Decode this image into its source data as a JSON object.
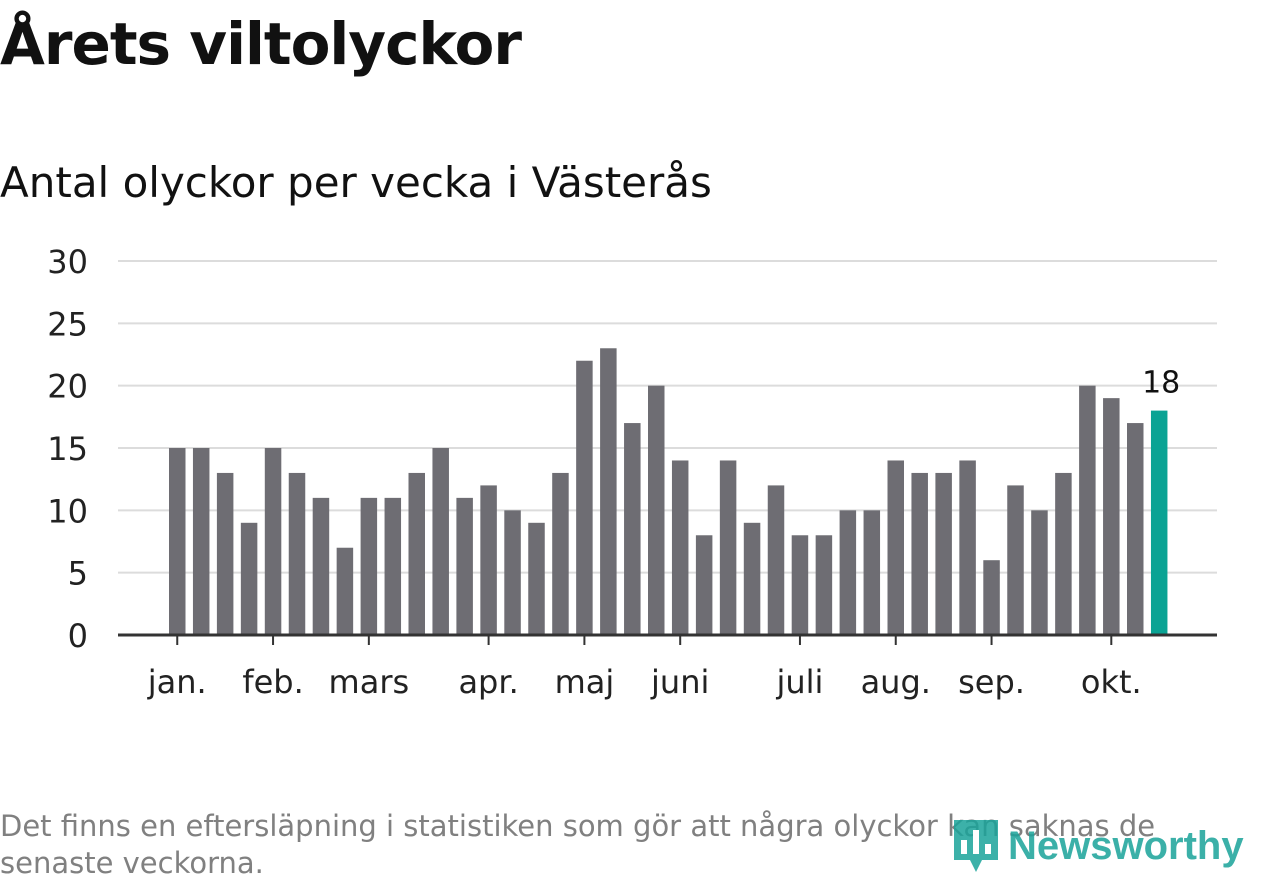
{
  "title": "Årets viltolyckor",
  "subtitle": "Antal olyckor per vecka i Västerås",
  "footnote": "Det finns en eftersläpning i statistiken som gör att några olyckor kan saknas de senaste veckorna.",
  "brand": {
    "name": "Newsworthy",
    "icon": "bar-chart-pin-icon",
    "color": "#1aa39a"
  },
  "colors": {
    "bar": "#6e6d73",
    "highlight": "#0aa394",
    "grid": "#dcdcdc",
    "axis": "#333333"
  },
  "chart_data": {
    "type": "bar",
    "title": "Årets viltolyckor",
    "subtitle": "Antal olyckor per vecka i Västerås",
    "xlabel": "",
    "ylabel": "",
    "ylim": [
      0,
      30
    ],
    "yticks": [
      "0",
      "5",
      "10",
      "15",
      "20",
      "25",
      "30"
    ],
    "values": [
      15,
      15,
      13,
      9,
      15,
      13,
      11,
      7,
      11,
      11,
      13,
      15,
      11,
      12,
      10,
      9,
      13,
      22,
      23,
      17,
      20,
      14,
      8,
      14,
      9,
      12,
      8,
      8,
      10,
      10,
      14,
      13,
      13,
      14,
      6,
      12,
      10,
      13,
      20,
      19,
      17,
      18
    ],
    "highlight_index": 41,
    "highlight_label": "18",
    "month_labels": [
      {
        "label": "jan.",
        "bar_index": 0
      },
      {
        "label": "feb.",
        "bar_index": 4
      },
      {
        "label": "mars",
        "bar_index": 8
      },
      {
        "label": "apr.",
        "bar_index": 13
      },
      {
        "label": "maj",
        "bar_index": 17
      },
      {
        "label": "juni",
        "bar_index": 21
      },
      {
        "label": "juli",
        "bar_index": 26
      },
      {
        "label": "aug.",
        "bar_index": 30
      },
      {
        "label": "sep.",
        "bar_index": 34
      },
      {
        "label": "okt.",
        "bar_index": 39
      }
    ],
    "grid": true
  }
}
